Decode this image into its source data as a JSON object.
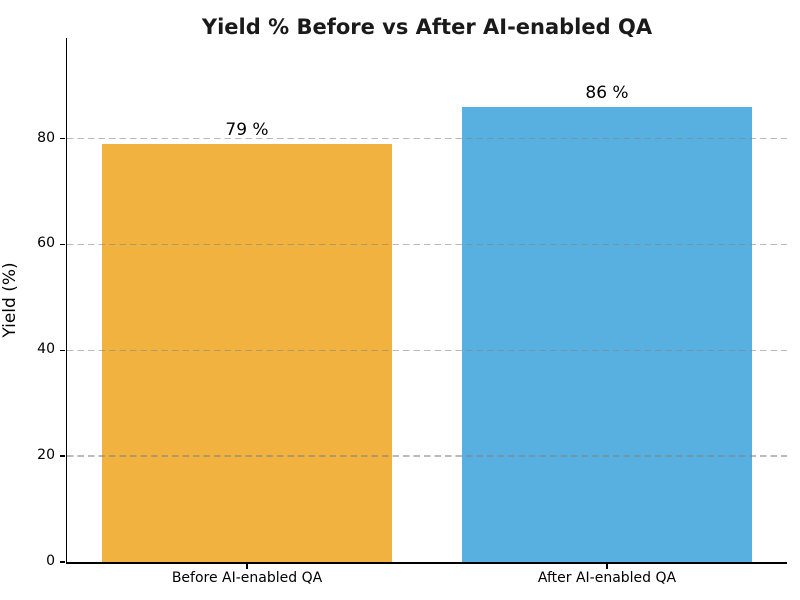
{
  "chart_data": {
    "type": "bar",
    "title": "Yield % Before vs After AI-enabled QA",
    "categories": [
      "Before AI-enabled QA",
      "After AI-enabled QA"
    ],
    "values": [
      79,
      86
    ],
    "value_labels": [
      "79 %",
      "86 %"
    ],
    "bar_colors": [
      "#F2B23F",
      "#58B0E0"
    ],
    "xlabel": "",
    "ylabel": "Yield (%)",
    "ylim": [
      0,
      99
    ],
    "yticks": [
      0,
      20,
      40,
      60,
      80
    ],
    "grid": "horizontal dashed gridlines drawn above bars",
    "gridline_color": "#c9c9c9",
    "axis_color": "#000000",
    "text_color": "#000000",
    "legend": "none"
  }
}
